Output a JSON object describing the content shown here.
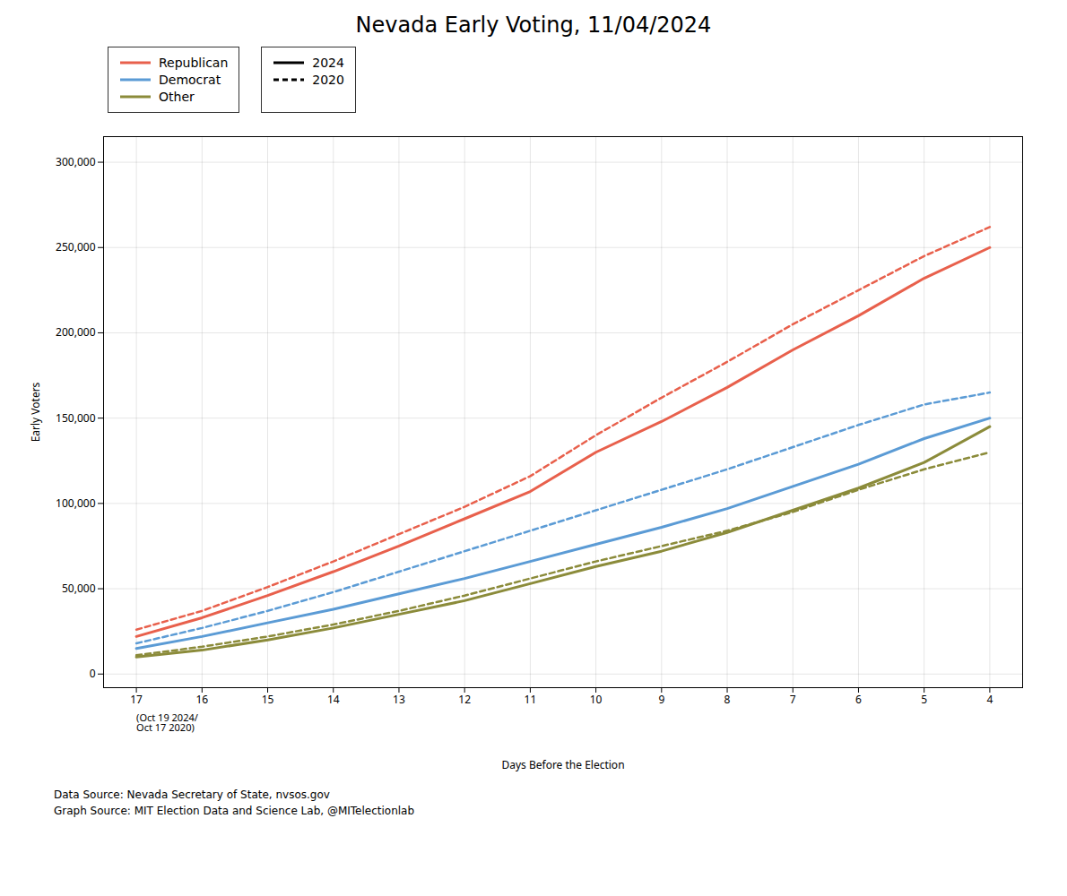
{
  "chart_data": {
    "type": "line",
    "title": "Nevada Early Voting, 11/04/2024",
    "xlabel": "Days Before the Election",
    "ylabel": "Early Voters",
    "x": [
      17,
      16,
      15,
      14,
      13,
      12,
      11,
      10,
      9,
      8,
      7,
      6,
      5,
      4
    ],
    "series": [
      {
        "name": "Republican",
        "color": "#E8604C",
        "line_style": "dashed",
        "values": [
          26000,
          37000,
          51000,
          66000,
          82000,
          98000,
          116000,
          140000,
          162000,
          183000,
          205000,
          225000,
          245000,
          262000
        ]
      },
      {
        "name": "Democrat",
        "color": "#5B9BD5",
        "line_style": "dashed",
        "values": [
          18000,
          27000,
          37000,
          48000,
          60000,
          72000,
          84000,
          96000,
          108000,
          120000,
          133000,
          146000,
          158000,
          165000
        ]
      },
      {
        "name": "Other",
        "color": "#8B8B3A",
        "line_style": "dashed",
        "values": [
          11000,
          16000,
          22000,
          29000,
          37000,
          46000,
          56000,
          66000,
          75000,
          84000,
          95000,
          108000,
          120000,
          130000
        ]
      },
      {
        "name": "Republican",
        "color": "#E8604C",
        "line_style": "solid",
        "values": [
          22000,
          33000,
          46000,
          60000,
          75000,
          91000,
          107000,
          130000,
          148000,
          168000,
          190000,
          210000,
          232000,
          250000
        ]
      },
      {
        "name": "Democrat",
        "color": "#5B9BD5",
        "line_style": "solid",
        "values": [
          15000,
          22000,
          30000,
          38000,
          47000,
          56000,
          66000,
          76000,
          86000,
          97000,
          110000,
          123000,
          138000,
          150000
        ]
      },
      {
        "name": "Other",
        "color": "#8B8B3A",
        "line_style": "solid",
        "values": [
          10000,
          14000,
          20000,
          27000,
          35000,
          43000,
          53000,
          63000,
          72000,
          83000,
          96000,
          109000,
          124000,
          145000
        ]
      }
    ],
    "line_styles": [
      {
        "name": "2024",
        "line_style": "solid"
      },
      {
        "name": "2020",
        "line_style": "dashed"
      }
    ],
    "xlim": [
      17.5,
      3.5
    ],
    "xticks": [
      17,
      16,
      15,
      14,
      13,
      12,
      11,
      10,
      9,
      8,
      7,
      6,
      5,
      4
    ],
    "ylim": [
      -8000,
      315000
    ],
    "yticks": [
      0,
      {
        "value": 50000,
        "label": "50,000"
      },
      {
        "value": 100000,
        "label": "100,000"
      },
      {
        "value": 150000,
        "label": "150,000"
      },
      {
        "value": 200000,
        "label": "200,000"
      },
      {
        "value": 250000,
        "label": "250,000"
      },
      {
        "value": 300000,
        "label": "300,000"
      }
    ],
    "grid": true,
    "legend": "upper left",
    "annotations": [
      {
        "text": "(Oct 19 2024/\nOct 17 2020)",
        "x": 17
      }
    ],
    "footnotes": [
      "Data Source: Nevada Secretary of State, nvsos.gov",
      "Graph Source: MIT Election Data and Science Lab, @MITelectionlab"
    ]
  }
}
